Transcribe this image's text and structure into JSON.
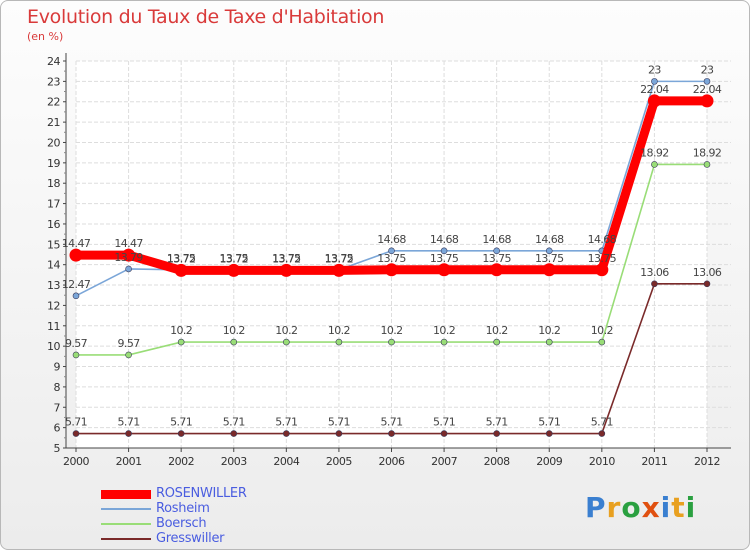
{
  "chart_data": {
    "type": "line",
    "title": "Evolution du Taux de Taxe d'Habitation",
    "subtitle": "(en %)",
    "categories": [
      "2000",
      "2001",
      "2002",
      "2003",
      "2004",
      "2005",
      "2006",
      "2007",
      "2008",
      "2009",
      "2010",
      "2011",
      "2012"
    ],
    "ylim": [
      5,
      24
    ],
    "yticks": [
      5,
      6,
      7,
      8,
      9,
      10,
      11,
      12,
      13,
      14,
      15,
      16,
      17,
      18,
      19,
      20,
      21,
      22,
      23,
      24
    ],
    "grid": true,
    "series": [
      {
        "name": "ROSENWILLER",
        "color": "#ff0000",
        "values": [
          14.47,
          14.47,
          13.72,
          13.72,
          13.72,
          13.72,
          13.75,
          13.75,
          13.75,
          13.75,
          13.75,
          22.04,
          22.04
        ],
        "labels": [
          "14.47",
          "14.47",
          "13.72",
          "13.72",
          "13.72",
          "13.72",
          "13.75",
          "13.75",
          "13.75",
          "13.75",
          "13.75",
          "22.04",
          "22.04"
        ]
      },
      {
        "name": "Rosheim",
        "color": "#7ba6d8",
        "values": [
          12.47,
          13.79,
          13.75,
          13.75,
          13.75,
          13.75,
          14.68,
          14.68,
          14.68,
          14.68,
          14.68,
          23,
          23
        ],
        "labels": [
          "12.47",
          "13.79",
          "13.75",
          "13.75",
          "13.75",
          "13.75",
          "14.68",
          "14.68",
          "14.68",
          "14.68",
          "14.68",
          "23",
          "23"
        ]
      },
      {
        "name": "Boersch",
        "color": "#99dd77",
        "values": [
          9.57,
          9.57,
          10.2,
          10.2,
          10.2,
          10.2,
          10.2,
          10.2,
          10.2,
          10.2,
          10.2,
          18.92,
          18.92
        ],
        "labels": [
          "9.57",
          "9.57",
          "10.2",
          "10.2",
          "10.2",
          "10.2",
          "10.2",
          "10.2",
          "10.2",
          "10.2",
          "10.2",
          "18.92",
          "18.92"
        ]
      },
      {
        "name": "Gresswiller",
        "color": "#7a2a2a",
        "values": [
          5.71,
          5.71,
          5.71,
          5.71,
          5.71,
          5.71,
          5.71,
          5.71,
          5.71,
          5.71,
          5.71,
          13.06,
          13.06
        ],
        "labels": [
          "5.71",
          "5.71",
          "5.71",
          "5.71",
          "5.71",
          "5.71",
          "5.71",
          "5.71",
          "5.71",
          "5.71",
          "5.71",
          "13.06",
          "13.06"
        ]
      }
    ],
    "legend_position": "bottom-left"
  },
  "logo": {
    "letters": [
      "P",
      "r",
      "o",
      "x",
      "i",
      "t",
      "i"
    ],
    "colors": [
      "#3a7fd0",
      "#e8a020",
      "#2aa040",
      "#e05010",
      "#3a7fd0",
      "#e8a020",
      "#2aa040"
    ]
  }
}
